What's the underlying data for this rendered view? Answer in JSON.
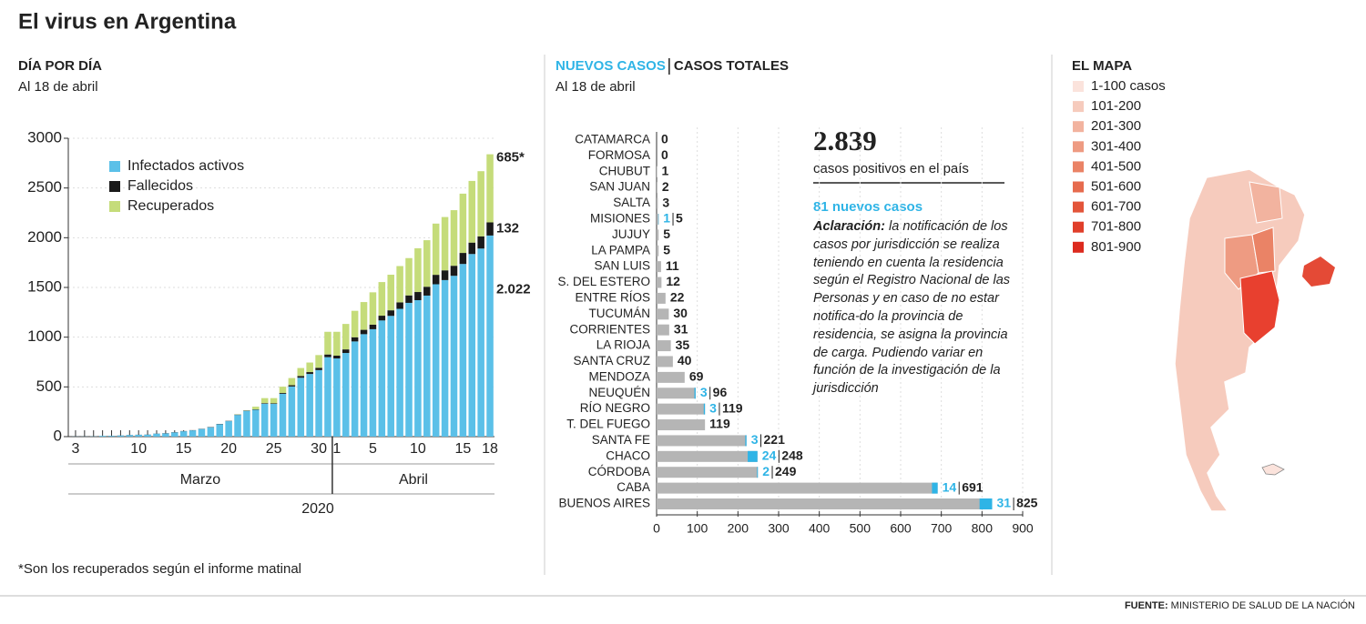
{
  "header": {
    "title": "El virus en Argentina"
  },
  "chart_data": [
    {
      "type": "bar",
      "title": "DÍA POR DÍA",
      "subtitle": "Al 18 de abril",
      "stacked": true,
      "legend": "top-left",
      "grid": true,
      "categories": [
        "3",
        null,
        null,
        null,
        null,
        null,
        null,
        "10",
        null,
        null,
        null,
        null,
        "15",
        null,
        null,
        null,
        null,
        "20",
        null,
        null,
        null,
        null,
        "25",
        null,
        null,
        null,
        null,
        "30",
        null,
        "1",
        null,
        null,
        null,
        "5",
        null,
        null,
        null,
        null,
        "10",
        null,
        null,
        null,
        null,
        "15",
        null,
        null,
        "18"
      ],
      "x_groups": [
        "Marzo",
        "Abril"
      ],
      "x_group_label": "2020",
      "ylim": [
        0,
        3000
      ],
      "yticks": [
        0,
        500,
        1000,
        1500,
        2000,
        2500,
        3000
      ],
      "series": [
        {
          "name": "Infectados activos",
          "color": "#5bc0e8",
          "values": [
            1,
            1,
            2,
            8,
            8,
            11,
            16,
            18,
            20,
            30,
            32,
            43,
            54,
            63,
            77,
            94,
            125,
            155,
            218,
            259,
            270,
            331,
            329,
            431,
            504,
            592,
            630,
            669,
            799,
            786,
            841,
            957,
            1030,
            1080,
            1168,
            1214,
            1285,
            1345,
            1372,
            1418,
            1532,
            1574,
            1617,
            1736,
            1836,
            1891,
            2022
          ],
          "value_labels": [
            null,
            null,
            null,
            null,
            null,
            null,
            null,
            null,
            null,
            null,
            null,
            null,
            null,
            null,
            null,
            null,
            null,
            null,
            null,
            null,
            null,
            null,
            null,
            null,
            null,
            null,
            null,
            null,
            null,
            null,
            null,
            null,
            null,
            null,
            null,
            null,
            null,
            null,
            null,
            null,
            null,
            null,
            null,
            null,
            null,
            null,
            "2.022"
          ]
        },
        {
          "name": "Fallecidos",
          "color": "#1a1a1a",
          "values": [
            0,
            0,
            0,
            0,
            1,
            1,
            1,
            1,
            1,
            1,
            2,
            2,
            2,
            2,
            2,
            3,
            3,
            3,
            4,
            4,
            4,
            6,
            6,
            8,
            13,
            18,
            19,
            23,
            27,
            28,
            36,
            42,
            44,
            46,
            48,
            56,
            65,
            75,
            82,
            89,
            95,
            98,
            101,
            111,
            115,
            123,
            132
          ]
        },
        {
          "name": "Recuperados",
          "color": "#c5dc7a",
          "values": [
            0,
            0,
            0,
            0,
            0,
            0,
            0,
            0,
            0,
            0,
            0,
            0,
            0,
            0,
            0,
            0,
            0,
            0,
            3,
            3,
            27,
            50,
            52,
            63,
            72,
            80,
            96,
            128,
            228,
            240,
            256,
            266,
            279,
            325,
            338,
            358,
            365,
            375,
            440,
            468,
            515,
            536,
            559,
            596,
            620,
            655,
            685
          ],
          "value_labels": [
            null,
            null,
            null,
            null,
            null,
            null,
            null,
            null,
            null,
            null,
            null,
            null,
            null,
            null,
            null,
            null,
            null,
            null,
            null,
            null,
            null,
            null,
            null,
            null,
            null,
            null,
            null,
            null,
            null,
            null,
            null,
            null,
            null,
            null,
            null,
            null,
            null,
            null,
            null,
            null,
            null,
            null,
            null,
            null,
            null,
            null,
            "685*"
          ]
        }
      ],
      "footnote": "*Son los recuperados según el informe matinal"
    },
    {
      "type": "hbar",
      "subtitle": "Al 18 de abril",
      "grid": true,
      "categories": [
        "CATAMARCA",
        "FORMOSA",
        "CHUBUT",
        "SAN JUAN",
        "SALTA",
        "MISIONES",
        "JUJUY",
        "LA PAMPA",
        "SAN LUIS",
        "S. DEL ESTERO",
        "ENTRE RÍOS",
        "TUCUMÁN",
        "CORRIENTES",
        "LA RIOJA",
        "SANTA CRUZ",
        "MENDOZA",
        "NEUQUÉN",
        "RÍO NEGRO",
        "T. DEL FUEGO",
        "SANTA FE",
        "CHACO",
        "CÓRDOBA",
        "CABA",
        "BUENOS AIRES"
      ],
      "xlim": [
        0,
        900
      ],
      "xticks": [
        0,
        100,
        200,
        300,
        400,
        500,
        600,
        700,
        800,
        900
      ],
      "series": [
        {
          "name": "NUEVOS CASOS",
          "color": "#2fb4e6",
          "values": [
            null,
            null,
            null,
            null,
            null,
            1,
            null,
            null,
            null,
            null,
            null,
            null,
            null,
            null,
            null,
            null,
            3,
            3,
            null,
            3,
            24,
            2,
            14,
            31
          ]
        },
        {
          "name": "CASOS TOTALES",
          "color": "#b5b5b5",
          "values": [
            0,
            0,
            1,
            2,
            3,
            5,
            5,
            5,
            11,
            12,
            22,
            30,
            31,
            35,
            40,
            69,
            96,
            119,
            119,
            221,
            248,
            249,
            691,
            825
          ]
        }
      ]
    }
  ],
  "summary": {
    "total": "2.839",
    "total_caption": "casos positivos en el país",
    "new_cases": "81 nuevos casos",
    "note_label": "Aclaración:",
    "note_text": " la notificación de los casos por jurisdicción se realiza teniendo en cuenta la residencia según el Registro Nacional de las Personas y en caso de no estar notifica-do la provincia de residencia, se asigna la provincia de carga. Pudiendo variar en función de la investigación de la jurisdicción"
  },
  "map": {
    "title": "EL MAPA",
    "legend": [
      {
        "label": "1-100 casos",
        "color": "#fbe3dc"
      },
      {
        "label": "101-200",
        "color": "#f6cbbd"
      },
      {
        "label": "201-300",
        "color": "#f2b39f"
      },
      {
        "label": "301-400",
        "color": "#ee9b82"
      },
      {
        "label": "401-500",
        "color": "#ea8366"
      },
      {
        "label": "501-600",
        "color": "#e66b4e"
      },
      {
        "label": "601-700",
        "color": "#e3553a"
      },
      {
        "label": "701-800",
        "color": "#e03f2a"
      },
      {
        "label": "801-900",
        "color": "#dc2a1e"
      }
    ]
  },
  "footer": {
    "source_label": "FUENTE:",
    "source": " MINISTERIO DE SALUD DE LA NACIÓN"
  }
}
